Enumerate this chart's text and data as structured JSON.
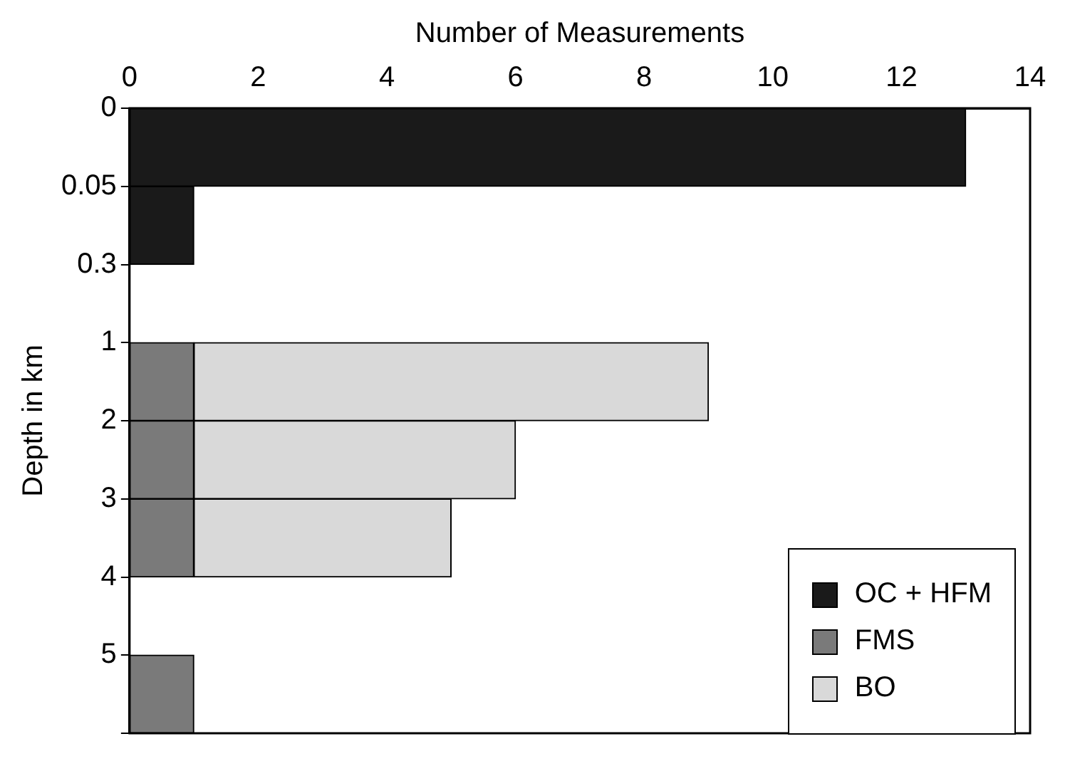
{
  "chart_data": {
    "type": "bar",
    "orientation": "horizontal",
    "stacked": true,
    "xlabel": "Number of Measurements",
    "ylabel": "Depth in km",
    "categories": [
      "0",
      "0.05",
      "0.3",
      "1",
      "2",
      "3",
      "4",
      "5"
    ],
    "series": [
      {
        "name": "OC + HFM",
        "color": "#1a1a1a",
        "values": [
          13,
          1,
          null,
          null,
          null,
          null,
          null,
          null
        ]
      },
      {
        "name": "FMS",
        "color": "#7a7a7a",
        "values": [
          null,
          null,
          null,
          1,
          1,
          1,
          null,
          1
        ]
      },
      {
        "name": "BO",
        "color": "#d9d9d9",
        "values": [
          null,
          null,
          null,
          8,
          5,
          4,
          null,
          null
        ]
      }
    ],
    "xlim": [
      0,
      14
    ],
    "xticks": [
      0,
      2,
      4,
      6,
      8,
      10,
      12,
      14
    ],
    "grid": false,
    "legend": "bottom right"
  }
}
